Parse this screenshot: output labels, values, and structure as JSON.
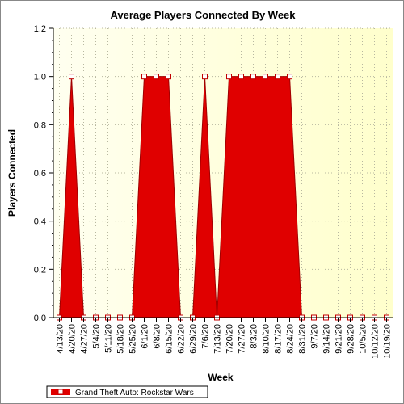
{
  "chart_data": {
    "type": "area",
    "title": "Average Players Connected By Week",
    "xlabel": "Week",
    "ylabel": "Players Connected",
    "ylim": [
      0,
      1.2
    ],
    "yticks": [
      "0.0",
      "0.2",
      "0.4",
      "0.6",
      "0.8",
      "1.0",
      "1.2"
    ],
    "grid": true,
    "legend_position": "bottom-left",
    "categories": [
      "4/13/20",
      "4/20/20",
      "4/27/20",
      "5/4/20",
      "5/11/20",
      "5/18/20",
      "5/25/20",
      "6/1/20",
      "6/8/20",
      "6/15/20",
      "6/22/20",
      "6/29/20",
      "7/6/20",
      "7/13/20",
      "7/20/20",
      "7/27/20",
      "8/3/20",
      "8/10/20",
      "8/17/20",
      "8/24/20",
      "8/31/20",
      "9/7/20",
      "9/14/20",
      "9/21/20",
      "9/28/20",
      "10/5/20",
      "10/12/20",
      "10/19/20"
    ],
    "series": [
      {
        "name": "Grand Theft Auto: Rockstar Wars",
        "values": [
          0,
          1,
          0,
          0,
          0,
          0,
          0,
          1,
          1,
          1,
          0,
          0,
          1,
          0,
          1,
          1,
          1,
          1,
          1,
          1,
          0,
          0,
          0,
          0,
          0,
          0,
          0,
          0
        ]
      }
    ]
  },
  "colors": {
    "series_fill": "#e00000",
    "plot_bg_left": "#fffff0",
    "plot_bg_right": "#ffffcc",
    "grid": "#b8b8a0",
    "marker_fill": "#ffffff",
    "marker_stroke": "#c00000"
  }
}
